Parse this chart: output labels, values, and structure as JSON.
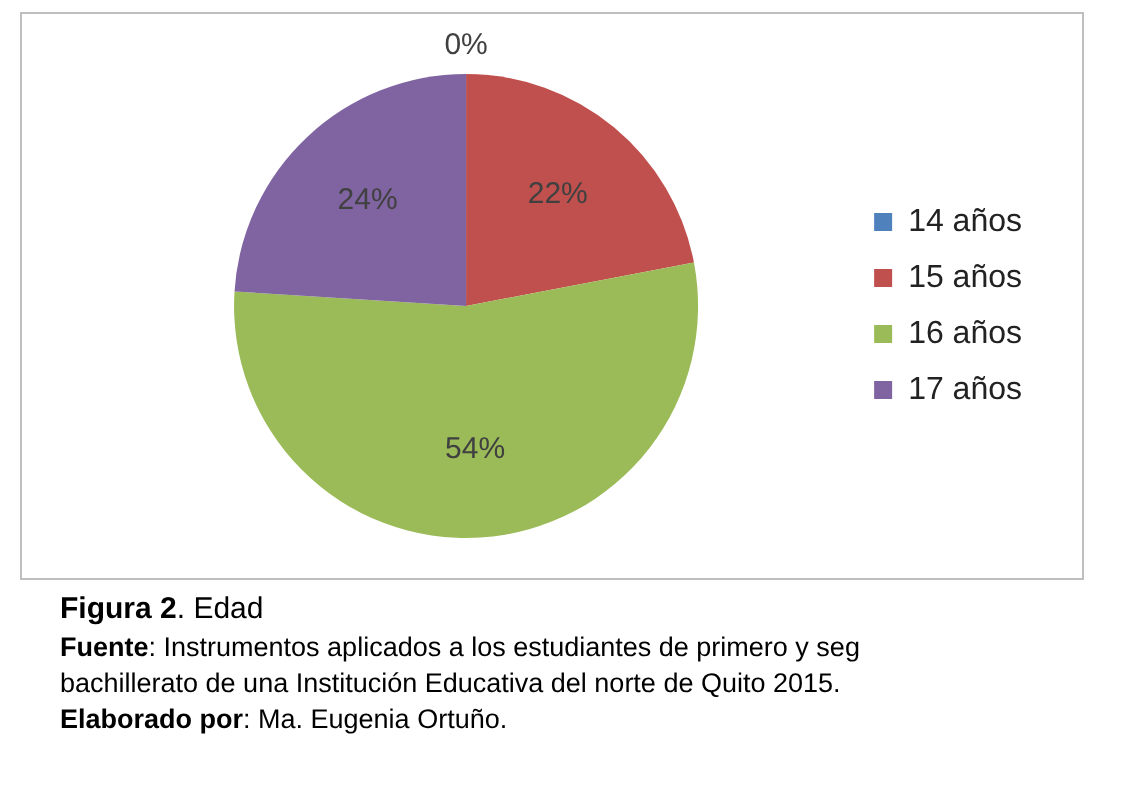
{
  "chart_data": {
    "type": "pie",
    "title": "Figura 2. Edad",
    "categories": [
      "14 años",
      "15 años",
      "16 años",
      "17 años"
    ],
    "values": [
      0,
      22,
      54,
      24
    ],
    "colors": [
      "#4f81bd",
      "#c0504d",
      "#9bbb59",
      "#8064a2"
    ],
    "value_labels": [
      "0%",
      "22%",
      "54%",
      "24%"
    ],
    "legend": "right",
    "annotations": [
      "Fuente: Instrumentos aplicados a los estudiantes de primero y seg\nbachillerato de una Institución Educativa del norte de Quito 2015.",
      "Elaborado por: Ma. Eugenia Ortuño."
    ]
  }
}
